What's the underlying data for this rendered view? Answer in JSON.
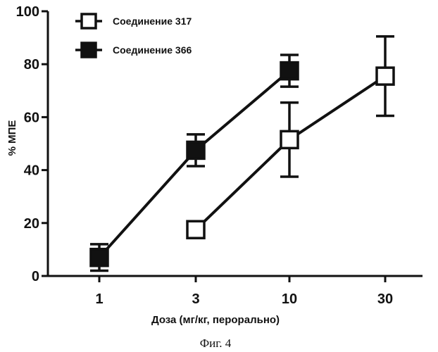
{
  "caption": "Фиг. 4",
  "colors": {
    "ink": "#111111",
    "open_fill": "#ffffff",
    "solid_fill": "#111111"
  },
  "chart_data": {
    "type": "line",
    "title": "",
    "xlabel": "Доза (мг/кг, перорально)",
    "ylabel": "% МПЕ",
    "x_scale": "log",
    "xticks": [
      1,
      3,
      10,
      30
    ],
    "xtick_labels": [
      "1",
      "3",
      "10",
      "30"
    ],
    "ylim": [
      0,
      100
    ],
    "yticks": [
      0,
      20,
      40,
      60,
      80,
      100
    ],
    "ytick_labels": [
      "0",
      "20",
      "40",
      "60",
      "80",
      "100"
    ],
    "grid": false,
    "legend_position": "top-left",
    "series": [
      {
        "name": "Соединение 317",
        "marker": "open-square",
        "x": [
          3,
          10,
          30
        ],
        "y": [
          17.5,
          51.5,
          75.5
        ],
        "error_low": [
          15.5,
          37.5,
          60.5
        ],
        "error_high": [
          19.5,
          65.5,
          90.5
        ]
      },
      {
        "name": "Соединение 366",
        "marker": "filled-square",
        "x": [
          1,
          3,
          10
        ],
        "y": [
          7,
          47.5,
          77.5
        ],
        "error_low": [
          2,
          41.5,
          71.5
        ],
        "error_high": [
          12,
          53.5,
          83.5
        ]
      }
    ]
  }
}
